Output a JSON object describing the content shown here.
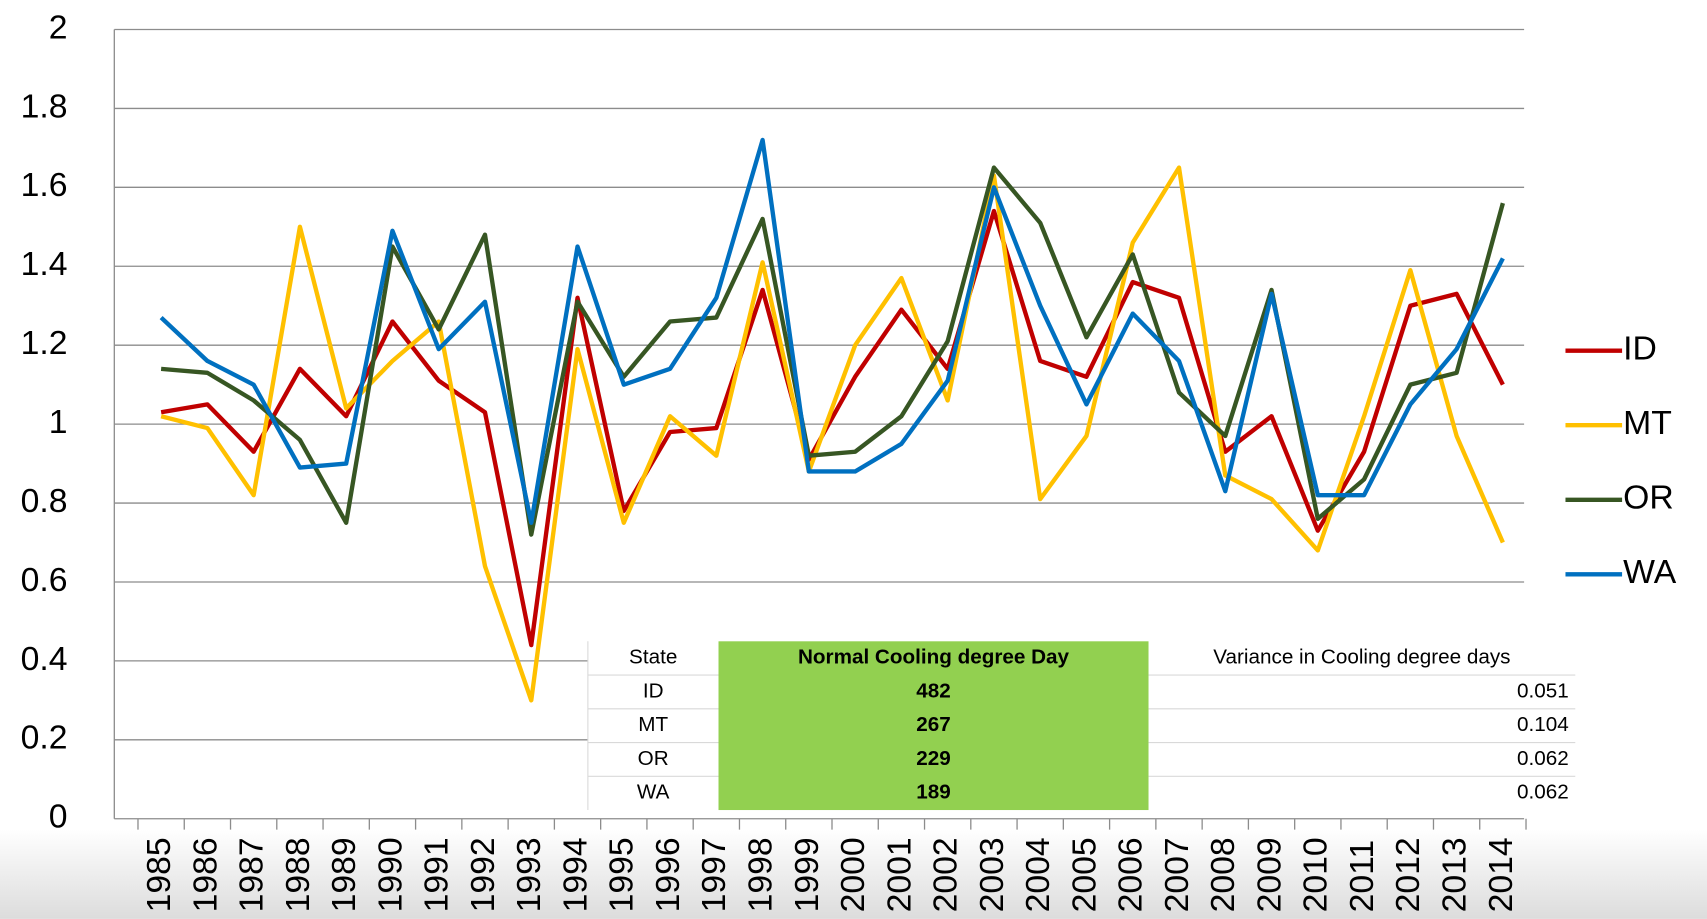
{
  "chart_data": {
    "type": "line",
    "x": [
      "1985",
      "1986",
      "1987",
      "1988",
      "1989",
      "1990",
      "1991",
      "1992",
      "1993",
      "1994",
      "1995",
      "1996",
      "1997",
      "1998",
      "1999",
      "2000",
      "2001",
      "2002",
      "2003",
      "2004",
      "2005",
      "2006",
      "2007",
      "2008",
      "2009",
      "2010",
      "2011",
      "2012",
      "2013",
      "2014"
    ],
    "series": [
      {
        "name": "ID",
        "color": "#c00000",
        "values": [
          1.03,
          1.05,
          0.93,
          1.14,
          1.02,
          1.26,
          1.11,
          1.03,
          0.44,
          1.32,
          0.78,
          0.98,
          0.99,
          1.34,
          0.91,
          1.12,
          1.29,
          1.14,
          1.54,
          1.16,
          1.12,
          1.36,
          1.32,
          0.93,
          1.02,
          0.73,
          0.93,
          1.3,
          1.33,
          1.1
        ]
      },
      {
        "name": "MT",
        "color": "#ffc000",
        "values": [
          1.02,
          0.99,
          0.82,
          1.5,
          1.04,
          1.16,
          1.26,
          0.64,
          0.3,
          1.19,
          0.75,
          1.02,
          0.92,
          1.41,
          0.88,
          1.2,
          1.37,
          1.06,
          1.63,
          0.81,
          0.97,
          1.46,
          1.65,
          0.87,
          0.81,
          0.68,
          1.02,
          1.39,
          0.97,
          0.7
        ]
      },
      {
        "name": "OR",
        "color": "#375623",
        "values": [
          1.14,
          1.13,
          1.06,
          0.96,
          0.75,
          1.45,
          1.24,
          1.48,
          0.72,
          1.31,
          1.12,
          1.26,
          1.27,
          1.52,
          0.92,
          0.93,
          1.02,
          1.21,
          1.65,
          1.51,
          1.22,
          1.43,
          1.08,
          0.97,
          1.34,
          0.76,
          0.86,
          1.1,
          1.13,
          1.56
        ]
      },
      {
        "name": "WA",
        "color": "#0070c0",
        "values": [
          1.27,
          1.16,
          1.1,
          0.89,
          0.9,
          1.49,
          1.19,
          1.31,
          0.75,
          1.45,
          1.1,
          1.14,
          1.32,
          1.72,
          0.88,
          0.88,
          0.95,
          1.11,
          1.6,
          1.3,
          1.05,
          1.28,
          1.16,
          0.83,
          1.33,
          0.82,
          0.82,
          1.05,
          1.19,
          1.42
        ]
      }
    ],
    "ylim": [
      0,
      2
    ],
    "yticks": [
      0,
      0.2,
      0.4,
      0.6,
      0.8,
      1,
      1.2,
      1.4,
      1.6,
      1.8,
      2
    ],
    "grid": true,
    "legend": "right"
  },
  "table": {
    "header": [
      "State",
      "Normal Cooling degree Day",
      "Variance in Cooling degree days"
    ],
    "rows": [
      [
        "ID",
        482,
        0.051
      ],
      [
        "MT",
        267,
        0.104
      ],
      [
        "OR",
        229,
        0.062
      ],
      [
        "WA",
        189,
        0.062
      ]
    ],
    "highlight_color": "#92d050"
  }
}
